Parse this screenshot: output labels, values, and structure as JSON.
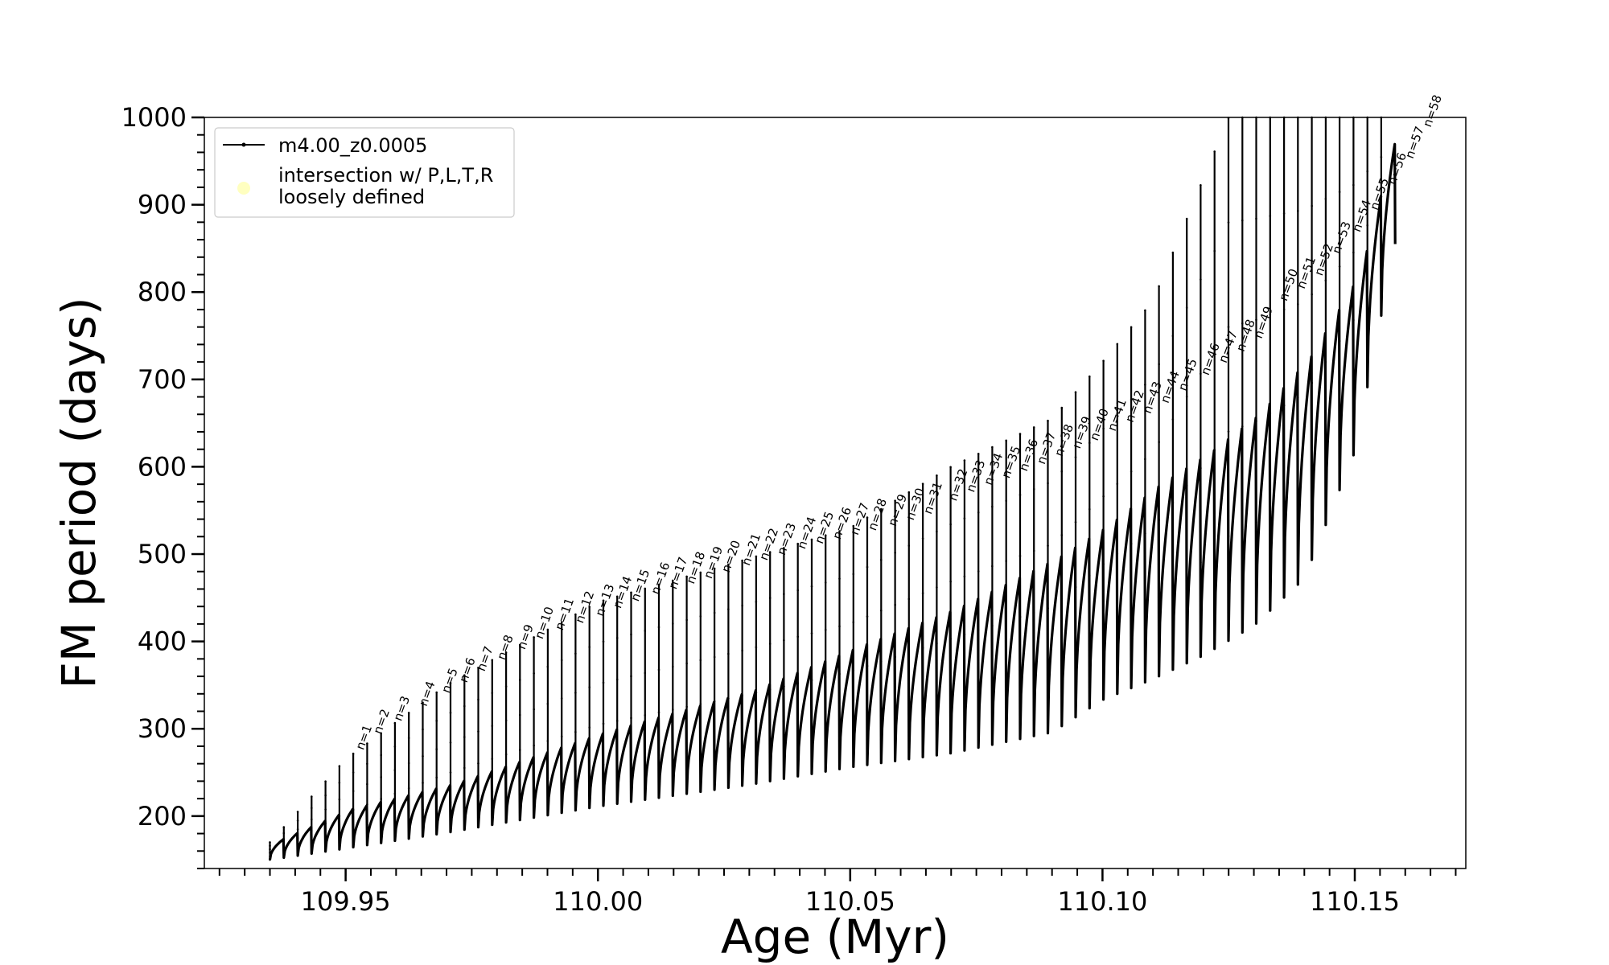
{
  "chart_data": {
    "type": "line",
    "title": "",
    "xlabel": "Age (Myr)",
    "ylabel": "FM period (days)",
    "xlim": [
      109.922,
      110.172
    ],
    "ylim": [
      140,
      1000
    ],
    "x_ticks": [
      109.95,
      110.0,
      110.05,
      110.1,
      110.15
    ],
    "x_tick_labels": [
      "109.95",
      "110.00",
      "110.05",
      "110.10",
      "110.15"
    ],
    "x_minor_step": 0.005,
    "y_ticks": [
      200,
      300,
      400,
      500,
      600,
      700,
      800,
      900,
      1000
    ],
    "y_tick_labels": [
      "200",
      "300",
      "400",
      "500",
      "600",
      "700",
      "800",
      "900",
      "1000"
    ],
    "y_minor_step": 20,
    "grid": false,
    "legend": {
      "placement": "top-left",
      "entries": [
        {
          "label": "m4.00_z0.0005",
          "color": "#000000",
          "marker": "line-dot"
        },
        {
          "label_lines": [
            "intersection w/ P,L,T,R",
            "loosely defined"
          ],
          "color": "#ffffc0",
          "marker": "circle"
        }
      ]
    },
    "series": [
      {
        "name": "m4.00_z0.0005",
        "color": "#000000",
        "cycle_count": 81,
        "x_start": 109.935,
        "x_end": 110.158,
        "baseline_period": [
          [
            109.935,
            150
          ],
          [
            109.95,
            163
          ],
          [
            109.97,
            181
          ],
          [
            110.0,
            211
          ],
          [
            110.03,
            236
          ],
          [
            110.05,
            256
          ],
          [
            110.07,
            272
          ],
          [
            110.09,
            296
          ],
          [
            110.1,
            333
          ],
          [
            110.11,
            357
          ],
          [
            110.12,
            384
          ],
          [
            110.13,
            418
          ],
          [
            110.14,
            472
          ],
          [
            110.15,
            617
          ],
          [
            110.158,
            855
          ]
        ],
        "envelope_period": [
          [
            109.935,
            170
          ],
          [
            109.95,
            208
          ],
          [
            109.97,
            236
          ],
          [
            110.0,
            295
          ],
          [
            110.03,
            344
          ],
          [
            110.05,
            392
          ],
          [
            110.07,
            437
          ],
          [
            110.09,
            495
          ],
          [
            110.1,
            532
          ],
          [
            110.11,
            578
          ],
          [
            110.12,
            615
          ],
          [
            110.13,
            660
          ],
          [
            110.14,
            725
          ],
          [
            110.15,
            822
          ],
          [
            110.158,
            1000
          ]
        ],
        "spike_peak_period": [
          [
            109.935,
            170
          ],
          [
            109.95,
            265
          ],
          [
            109.97,
            350
          ],
          [
            110.0,
            445
          ],
          [
            110.03,
            495
          ],
          [
            110.05,
            530
          ],
          [
            110.07,
            600
          ],
          [
            110.09,
            655
          ],
          [
            110.1,
            720
          ],
          [
            110.11,
            790
          ],
          [
            110.12,
            930
          ],
          [
            110.125,
            1000
          ],
          [
            110.158,
            1000
          ]
        ]
      }
    ],
    "annotations": [
      {
        "text": "n=1",
        "x": 109.9535,
        "y": 275
      },
      {
        "text": "n=2",
        "x": 109.957,
        "y": 293
      },
      {
        "text": "n=3",
        "x": 109.961,
        "y": 308
      },
      {
        "text": "n=4",
        "x": 109.966,
        "y": 325
      },
      {
        "text": "n=5",
        "x": 109.9705,
        "y": 340
      },
      {
        "text": "n=6",
        "x": 109.974,
        "y": 352
      },
      {
        "text": "n=7",
        "x": 109.9775,
        "y": 365
      },
      {
        "text": "n=8",
        "x": 109.9815,
        "y": 378
      },
      {
        "text": "n=9",
        "x": 109.9855,
        "y": 390
      },
      {
        "text": "n=10",
        "x": 109.989,
        "y": 402
      },
      {
        "text": "n=11",
        "x": 109.993,
        "y": 412
      },
      {
        "text": "n=12",
        "x": 109.997,
        "y": 420
      },
      {
        "text": "n=13",
        "x": 110.001,
        "y": 428
      },
      {
        "text": "n=14",
        "x": 110.0045,
        "y": 437
      },
      {
        "text": "n=15",
        "x": 110.008,
        "y": 445
      },
      {
        "text": "n=16",
        "x": 110.012,
        "y": 453
      },
      {
        "text": "n=17",
        "x": 110.0155,
        "y": 459
      },
      {
        "text": "n=18",
        "x": 110.019,
        "y": 465
      },
      {
        "text": "n=19",
        "x": 110.0225,
        "y": 471
      },
      {
        "text": "n=20",
        "x": 110.026,
        "y": 478
      },
      {
        "text": "n=21",
        "x": 110.03,
        "y": 486
      },
      {
        "text": "n=22",
        "x": 110.0335,
        "y": 492
      },
      {
        "text": "n=23",
        "x": 110.037,
        "y": 498
      },
      {
        "text": "n=24",
        "x": 110.041,
        "y": 505
      },
      {
        "text": "n=25",
        "x": 110.0445,
        "y": 511
      },
      {
        "text": "n=26",
        "x": 110.048,
        "y": 516
      },
      {
        "text": "n=27",
        "x": 110.0515,
        "y": 521
      },
      {
        "text": "n=28",
        "x": 110.055,
        "y": 526
      },
      {
        "text": "n=29",
        "x": 110.059,
        "y": 531
      },
      {
        "text": "n=30",
        "x": 110.0625,
        "y": 538
      },
      {
        "text": "n=31",
        "x": 110.066,
        "y": 545
      },
      {
        "text": "n=32",
        "x": 110.071,
        "y": 560
      },
      {
        "text": "n=33",
        "x": 110.0745,
        "y": 570
      },
      {
        "text": "n=34",
        "x": 110.078,
        "y": 578
      },
      {
        "text": "n=35",
        "x": 110.0815,
        "y": 586
      },
      {
        "text": "n=36",
        "x": 110.085,
        "y": 594
      },
      {
        "text": "n=37",
        "x": 110.0885,
        "y": 602
      },
      {
        "text": "n=38",
        "x": 110.092,
        "y": 611
      },
      {
        "text": "n=39",
        "x": 110.0955,
        "y": 620
      },
      {
        "text": "n=40",
        "x": 110.099,
        "y": 629
      },
      {
        "text": "n=41",
        "x": 110.1025,
        "y": 640
      },
      {
        "text": "n=42",
        "x": 110.106,
        "y": 650
      },
      {
        "text": "n=43",
        "x": 110.1095,
        "y": 660
      },
      {
        "text": "n=44",
        "x": 110.113,
        "y": 672
      },
      {
        "text": "n=45",
        "x": 110.1165,
        "y": 686
      },
      {
        "text": "n=46",
        "x": 110.121,
        "y": 704
      },
      {
        "text": "n=47",
        "x": 110.1245,
        "y": 718
      },
      {
        "text": "n=48",
        "x": 110.128,
        "y": 731
      },
      {
        "text": "n=49",
        "x": 110.1315,
        "y": 746
      },
      {
        "text": "n=50",
        "x": 110.1365,
        "y": 789
      },
      {
        "text": "n=51",
        "x": 110.14,
        "y": 803
      },
      {
        "text": "n=52",
        "x": 110.1435,
        "y": 818
      },
      {
        "text": "n=53",
        "x": 110.147,
        "y": 843
      },
      {
        "text": "n=54",
        "x": 110.151,
        "y": 868
      },
      {
        "text": "n=55",
        "x": 110.1545,
        "y": 893
      },
      {
        "text": "n=56",
        "x": 110.158,
        "y": 922
      },
      {
        "text": "n=57",
        "x": 110.1615,
        "y": 952
      },
      {
        "text": "n=58",
        "x": 110.165,
        "y": 988
      }
    ]
  }
}
